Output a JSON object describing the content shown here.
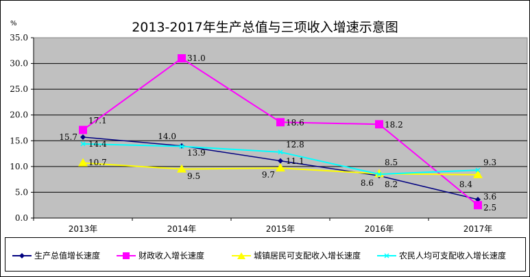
{
  "chart_data": {
    "type": "line",
    "title": "2013-2017年生产总值与三项收入增速示意图",
    "ylabel": "%",
    "categories": [
      "2013年",
      "2014年",
      "2015年",
      "2016年",
      "2017年"
    ],
    "ylim": [
      0,
      35
    ],
    "yticks": [
      "0.0",
      "5.0",
      "10.0",
      "15.0",
      "20.0",
      "25.0",
      "30.0",
      "35.0"
    ],
    "grid": true,
    "legend_position": "bottom",
    "plot_background": "#c0c0c0",
    "series": [
      {
        "name": "生产总值增长速度",
        "color": "#000080",
        "marker": "diamond",
        "values": [
          15.7,
          14.0,
          11.1,
          8.2,
          3.6
        ]
      },
      {
        "name": "财政收入增长速度",
        "color": "#ff00ff",
        "marker": "square",
        "values": [
          17.1,
          31.0,
          18.6,
          18.2,
          2.5
        ]
      },
      {
        "name": "城镇居民可支配收入增长速度",
        "color": "#ffff00",
        "marker": "triangle",
        "values": [
          10.7,
          9.5,
          9.7,
          8.6,
          8.4
        ]
      },
      {
        "name": "农民人均可支配收入增长速度",
        "color": "#00ffff",
        "marker": "x",
        "values": [
          14.4,
          13.9,
          12.8,
          8.5,
          9.3
        ]
      }
    ]
  }
}
